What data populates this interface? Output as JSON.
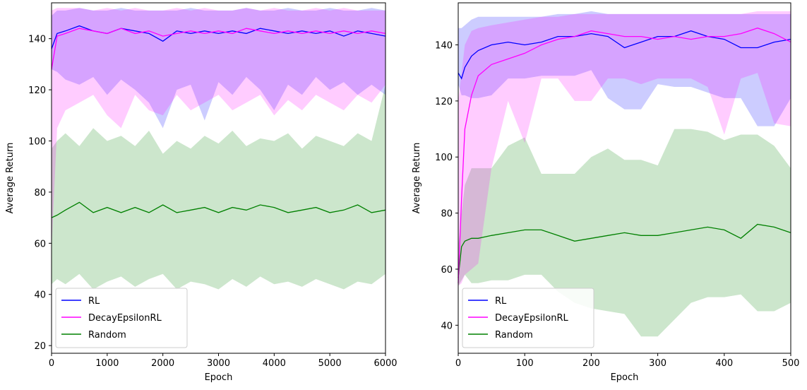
{
  "chart_data": [
    {
      "type": "line",
      "xlabel": "Epoch",
      "ylabel": "Average Return",
      "xlim": [
        0,
        6000
      ],
      "ylim": [
        17,
        154
      ],
      "xticks": [
        0,
        1000,
        2000,
        3000,
        4000,
        5000,
        6000
      ],
      "yticks": [
        20,
        40,
        60,
        80,
        100,
        120,
        140
      ],
      "grid": false,
      "legend_position": "lower-left",
      "series": [
        {
          "name": "RL",
          "color": "#0000ff",
          "x": [
            0,
            100,
            250,
            500,
            750,
            1000,
            1250,
            1500,
            1750,
            2000,
            2250,
            2500,
            2750,
            3000,
            3250,
            3500,
            3750,
            4000,
            4250,
            4500,
            4750,
            5000,
            5250,
            5500,
            5750,
            6000
          ],
          "mean": [
            136,
            142,
            143,
            145,
            143,
            142,
            144,
            143,
            142,
            139,
            143,
            142,
            143,
            142,
            143,
            142,
            144,
            143,
            142,
            143,
            142,
            143,
            141,
            143,
            142,
            141
          ],
          "upper": [
            149,
            151,
            151,
            152,
            151,
            151,
            152,
            151,
            151,
            151,
            151,
            152,
            151,
            151,
            151,
            152,
            151,
            151,
            152,
            151,
            151,
            152,
            151,
            151,
            152,
            151
          ],
          "lower": [
            128,
            127,
            124,
            122,
            125,
            118,
            124,
            120,
            115,
            105,
            120,
            122,
            108,
            123,
            118,
            125,
            120,
            112,
            122,
            118,
            125,
            120,
            123,
            118,
            122,
            118
          ]
        },
        {
          "name": "DecayEpsilonRL",
          "color": "#ff00ff",
          "x": [
            0,
            100,
            250,
            500,
            750,
            1000,
            1250,
            1500,
            1750,
            2000,
            2250,
            2500,
            2750,
            3000,
            3250,
            3500,
            3750,
            4000,
            4250,
            4500,
            4750,
            5000,
            5250,
            5500,
            5750,
            6000
          ],
          "mean": [
            128,
            141,
            142,
            144,
            143,
            142,
            144,
            142,
            143,
            141,
            142,
            143,
            142,
            143,
            142,
            144,
            143,
            142,
            143,
            142,
            143,
            142,
            143,
            142,
            143,
            142
          ],
          "upper": [
            151,
            152,
            152,
            152,
            151,
            152,
            151,
            152,
            151,
            151,
            152,
            151,
            152,
            151,
            151,
            152,
            151,
            152,
            151,
            151,
            152,
            151,
            152,
            151,
            151,
            151
          ],
          "lower": [
            58,
            105,
            112,
            115,
            118,
            110,
            105,
            118,
            112,
            110,
            118,
            112,
            115,
            118,
            112,
            115,
            118,
            110,
            116,
            112,
            118,
            115,
            112,
            118,
            115,
            122
          ]
        },
        {
          "name": "Random",
          "color": "#008000",
          "x": [
            0,
            100,
            250,
            500,
            750,
            1000,
            1250,
            1500,
            1750,
            2000,
            2250,
            2500,
            2750,
            3000,
            3250,
            3500,
            3750,
            4000,
            4250,
            4500,
            4750,
            5000,
            5250,
            5500,
            5750,
            6000
          ],
          "mean": [
            70,
            71,
            73,
            76,
            72,
            74,
            72,
            74,
            72,
            75,
            72,
            73,
            74,
            72,
            74,
            73,
            75,
            74,
            72,
            73,
            74,
            72,
            73,
            75,
            72,
            73
          ],
          "upper": [
            97,
            100,
            103,
            98,
            105,
            100,
            102,
            98,
            104,
            95,
            100,
            97,
            102,
            99,
            104,
            98,
            101,
            100,
            103,
            97,
            102,
            100,
            98,
            103,
            100,
            122
          ],
          "lower": [
            44,
            46,
            44,
            48,
            42,
            45,
            47,
            43,
            46,
            48,
            42,
            45,
            44,
            42,
            46,
            43,
            47,
            44,
            45,
            43,
            46,
            44,
            42,
            45,
            44,
            48
          ]
        }
      ]
    },
    {
      "type": "line",
      "xlabel": "Epoch",
      "ylabel": "Average Return",
      "xlim": [
        0,
        500
      ],
      "ylim": [
        30,
        155
      ],
      "xticks": [
        0,
        100,
        200,
        300,
        400,
        500
      ],
      "yticks": [
        40,
        60,
        80,
        100,
        120,
        140
      ],
      "grid": false,
      "legend_position": "lower-left",
      "series": [
        {
          "name": "RL",
          "color": "#0000ff",
          "x": [
            0,
            5,
            10,
            20,
            30,
            50,
            75,
            100,
            125,
            150,
            175,
            200,
            225,
            250,
            275,
            300,
            325,
            350,
            375,
            400,
            425,
            450,
            475,
            500
          ],
          "mean": [
            130,
            128,
            132,
            136,
            138,
            140,
            141,
            140,
            141,
            143,
            143,
            144,
            143,
            139,
            141,
            143,
            143,
            145,
            143,
            142,
            139,
            139,
            141,
            142
          ],
          "upper": [
            146,
            146,
            147,
            149,
            150,
            150,
            150,
            150,
            150,
            151,
            151,
            152,
            151,
            151,
            151,
            151,
            151,
            151,
            151,
            151,
            151,
            151,
            151,
            151
          ],
          "lower": [
            126,
            122,
            122,
            121,
            121,
            122,
            128,
            128,
            129,
            129,
            129,
            131,
            121,
            117,
            117,
            126,
            125,
            125,
            123,
            121,
            121,
            111,
            111,
            121
          ]
        },
        {
          "name": "DecayEpsilonRL",
          "color": "#ff00ff",
          "x": [
            0,
            5,
            10,
            20,
            30,
            50,
            75,
            100,
            125,
            150,
            175,
            200,
            225,
            250,
            275,
            300,
            325,
            350,
            375,
            400,
            425,
            450,
            475,
            500
          ],
          "mean": [
            55,
            85,
            110,
            122,
            129,
            133,
            135,
            137,
            140,
            142,
            143,
            145,
            144,
            143,
            143,
            142,
            143,
            142,
            143,
            143,
            144,
            146,
            144,
            141
          ],
          "upper": [
            120,
            130,
            140,
            145,
            146,
            147,
            148,
            149,
            150,
            150,
            151,
            151,
            151,
            151,
            151,
            151,
            151,
            151,
            151,
            151,
            151,
            152,
            152,
            152
          ],
          "lower": [
            54,
            55,
            58,
            60,
            62,
            96,
            120,
            105,
            128,
            128,
            120,
            120,
            128,
            128,
            126,
            128,
            128,
            128,
            125,
            108,
            128,
            130,
            112,
            111
          ]
        },
        {
          "name": "Random",
          "color": "#008000",
          "x": [
            0,
            5,
            10,
            20,
            30,
            50,
            75,
            100,
            125,
            150,
            175,
            200,
            225,
            250,
            275,
            300,
            325,
            350,
            375,
            400,
            425,
            450,
            475,
            500
          ],
          "mean": [
            57,
            68,
            70,
            71,
            71,
            72,
            73,
            74,
            74,
            72,
            70,
            71,
            72,
            73,
            72,
            72,
            73,
            74,
            75,
            74,
            71,
            76,
            75,
            73
          ],
          "upper": [
            68,
            80,
            90,
            96,
            96,
            96,
            104,
            107,
            94,
            94,
            94,
            100,
            103,
            99,
            99,
            97,
            110,
            110,
            109,
            106,
            108,
            108,
            104,
            96
          ],
          "lower": [
            54,
            56,
            58,
            55,
            55,
            56,
            56,
            58,
            58,
            52,
            48,
            46,
            45,
            44,
            36,
            36,
            42,
            48,
            50,
            50,
            51,
            45,
            45,
            48
          ]
        }
      ]
    }
  ]
}
